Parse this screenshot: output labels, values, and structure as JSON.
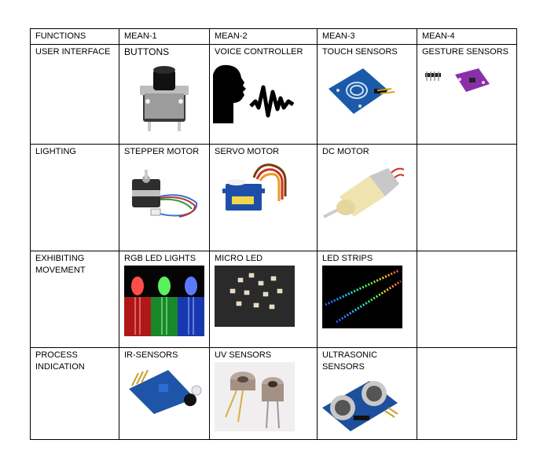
{
  "table": {
    "headers": [
      "FUNCTIONS",
      "MEAN-1",
      "MEAN-2",
      "MEAN-3",
      "MEAN-4"
    ],
    "rows": [
      {
        "function": "USER INTERFACE",
        "means": [
          "BUTTONS",
          "VOICE CONTROLLER",
          "TOUCH SENSORS",
          "GESTURE SENSORS"
        ],
        "icons": [
          "push-button-photo",
          "voice-silhouette-icon",
          "touch-sensor-board-photo",
          "gesture-sensor-board-photo"
        ]
      },
      {
        "function": "LIGHTING",
        "means": [
          "STEPPER MOTOR",
          "SERVO MOTOR",
          "DC MOTOR",
          ""
        ],
        "icons": [
          "stepper-motor-photo",
          "servo-motor-photo",
          "dc-motor-photo"
        ]
      },
      {
        "function": "EXHIBITING MOVEMENT",
        "means": [
          "RGB LED LIGHTS",
          "MICRO LED",
          "LED STRIPS",
          ""
        ],
        "icons": [
          "rgb-led-photo",
          "micro-led-photo",
          "led-strip-photo"
        ]
      },
      {
        "function": "PROCESS INDICATION",
        "means": [
          "IR-SENSORS",
          "UV SENSORS",
          "ULTRASONIC SENSORS",
          ""
        ],
        "icons": [
          "ir-sensor-photo",
          "uv-sensor-photo",
          "ultrasonic-sensor-photo"
        ]
      }
    ]
  }
}
